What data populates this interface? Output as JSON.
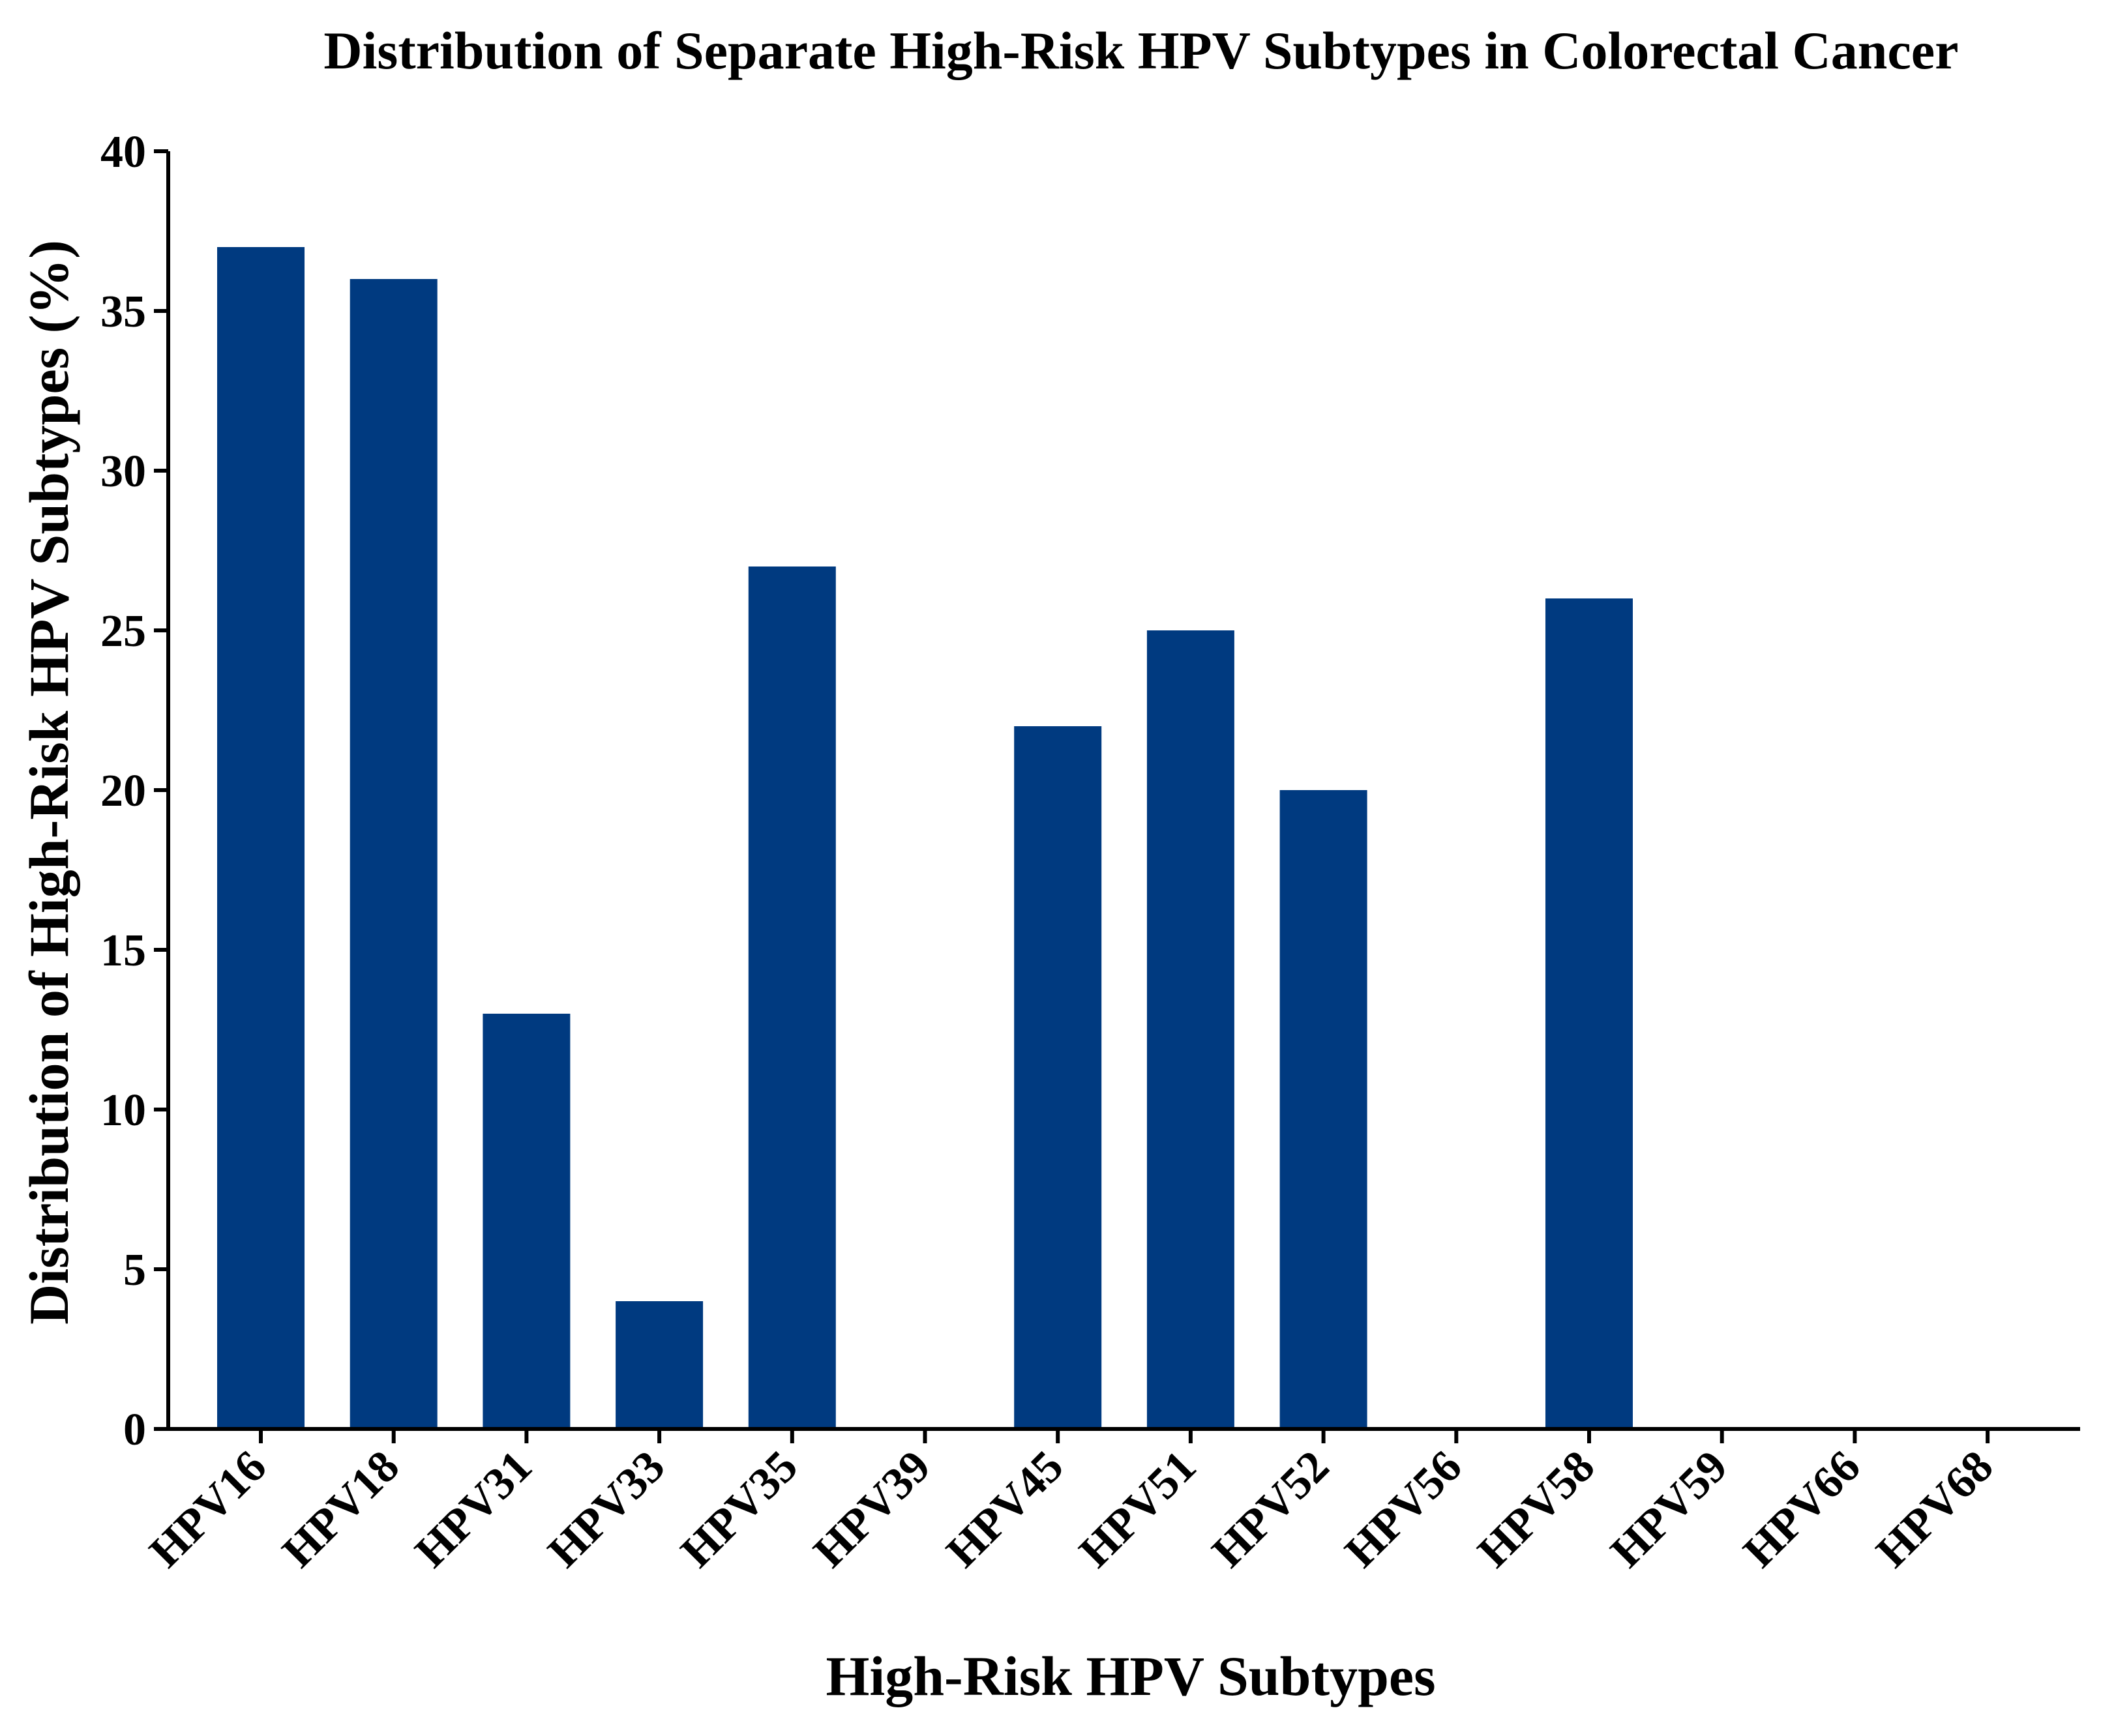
{
  "chart_data": {
    "type": "bar",
    "title": "Distribution of Separate High-Risk HPV Subtypes in Colorectal Cancer",
    "xlabel": "High-Risk HPV Subtypes",
    "ylabel": "Distribution of High-Risk HPV Subtypes (%)",
    "categories": [
      "HPV16",
      "HPV18",
      "HPV31",
      "HPV33",
      "HPV35",
      "HPV39",
      "HPV45",
      "HPV51",
      "HPV52",
      "HPV56",
      "HPV58",
      "HPV59",
      "HPV66",
      "HPV68"
    ],
    "values": [
      37,
      36,
      13,
      4,
      27,
      0,
      22,
      25,
      20,
      0,
      26,
      0,
      0,
      0
    ],
    "ylim": [
      0,
      40
    ],
    "yticks": [
      0,
      5,
      10,
      15,
      20,
      25,
      30,
      35,
      40
    ],
    "grid": false,
    "legend": "none",
    "bar_color": "#003a80",
    "axis_color": "#000000"
  }
}
